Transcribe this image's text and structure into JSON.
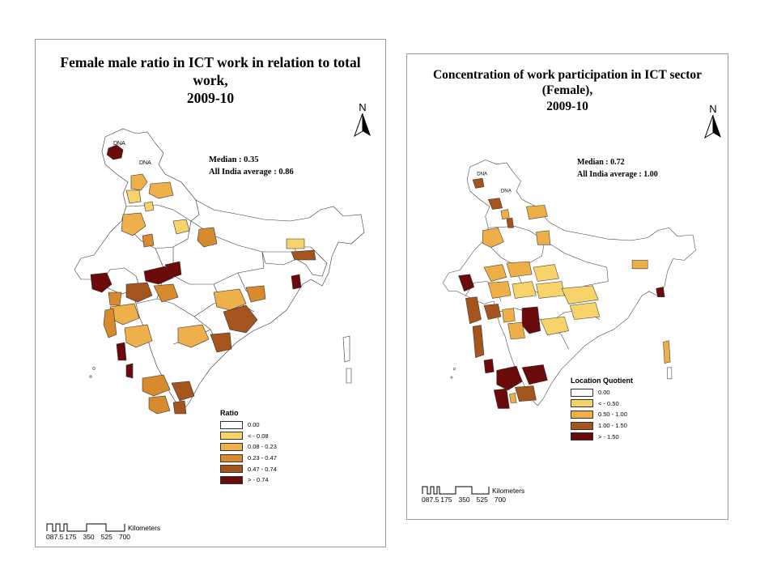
{
  "maps": [
    {
      "title_line1": "Female male ratio in ICT work in relation to total work,",
      "title_line2": "2009-10",
      "median": "Median : 0.35",
      "average": "All India average : 0.86",
      "north": "N",
      "dna_labels": [
        "DNA",
        "DNA"
      ],
      "legend": {
        "title": "Ratio",
        "items": [
          {
            "label": "0.00",
            "color": "#ffffff"
          },
          {
            "label": "<      - 0.08",
            "color": "#f7d36b"
          },
          {
            "label": "0.08 - 0.23",
            "color": "#eeb04a"
          },
          {
            "label": "0.23 - 0.47",
            "color": "#d88a2e"
          },
          {
            "label": "0.47 - 0.74",
            "color": "#a4541d"
          },
          {
            "label": ">      - 0.74",
            "color": "#6b0a0a"
          }
        ]
      },
      "scale": {
        "units": "Kilometers",
        "ticks": [
          "0",
          "87.5",
          "175",
          "350",
          "525",
          "700"
        ]
      }
    },
    {
      "title_line1": "Concentration of work participation in ICT sector (Female),",
      "title_line2": "2009-10",
      "median": "Median : 0.72",
      "average": "All India average : 1.00",
      "north": "N",
      "dna_labels": [
        "DNA",
        "DNA"
      ],
      "legend": {
        "title": "Location Quotient",
        "items": [
          {
            "label": "0.00",
            "color": "#ffffff"
          },
          {
            "label": "<      - 0.50",
            "color": "#f7d36b"
          },
          {
            "label": "0.50 - 1.00",
            "color": "#eeae48"
          },
          {
            "label": "1.00 - 1.50",
            "color": "#a4541d"
          },
          {
            "label": ">      - 1.50",
            "color": "#6b0a0a"
          }
        ]
      },
      "scale": {
        "units": "Kilometers",
        "ticks": [
          "0",
          "87.5",
          "175",
          "350",
          "525",
          "700"
        ]
      }
    }
  ]
}
